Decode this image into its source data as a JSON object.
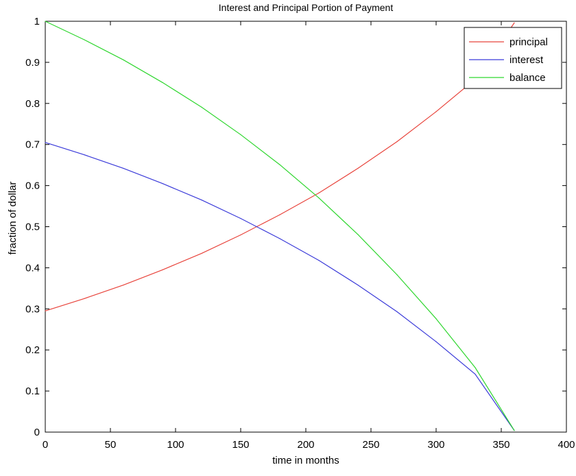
{
  "chart_data": {
    "type": "line",
    "title": "Interest and Principal Portion of Payment",
    "xlabel": "time in months",
    "ylabel": "fraction of dollar",
    "xlim": [
      0,
      400
    ],
    "ylim": [
      0,
      1
    ],
    "xticks": [
      0,
      50,
      100,
      150,
      200,
      250,
      300,
      350,
      400
    ],
    "yticks": [
      0,
      0.1,
      0.2,
      0.3,
      0.4,
      0.5,
      0.6,
      0.7,
      0.8,
      0.9,
      1
    ],
    "xtick_labels": [
      "0",
      "50",
      "100",
      "150",
      "200",
      "250",
      "300",
      "350",
      "400"
    ],
    "ytick_labels": [
      "0",
      "0.1",
      "0.2",
      "0.3",
      "0.4",
      "0.5",
      "0.6",
      "0.7",
      "0.8",
      "0.9",
      "1"
    ],
    "grid": false,
    "legend_position": "top-right",
    "x": [
      0,
      30,
      60,
      90,
      120,
      150,
      180,
      210,
      240,
      270,
      300,
      330,
      360
    ],
    "series": [
      {
        "name": "principal",
        "color": "#e8433b",
        "values": [
          0.295,
          0.325,
          0.358,
          0.395,
          0.435,
          0.48,
          0.529,
          0.582,
          0.642,
          0.707,
          0.78,
          0.859,
          0.996
        ]
      },
      {
        "name": "interest",
        "color": "#3a3ad9",
        "values": [
          0.705,
          0.675,
          0.642,
          0.605,
          0.565,
          0.52,
          0.471,
          0.418,
          0.358,
          0.293,
          0.22,
          0.141,
          0.004
        ]
      },
      {
        "name": "balance",
        "color": "#2ed62e",
        "values": [
          1.0,
          0.955,
          0.906,
          0.851,
          0.791,
          0.724,
          0.651,
          0.57,
          0.481,
          0.383,
          0.276,
          0.157,
          0.004
        ]
      }
    ]
  }
}
